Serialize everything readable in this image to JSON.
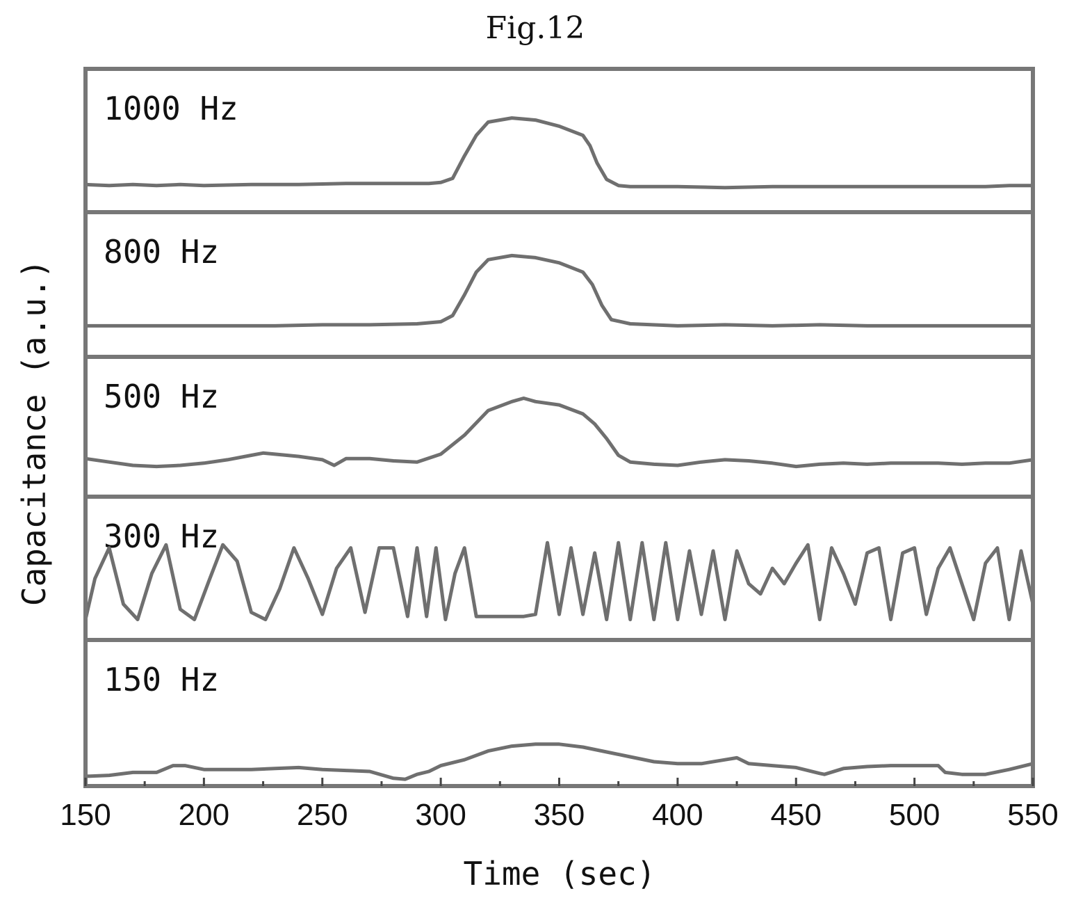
{
  "figure": {
    "title": "Fig.12"
  },
  "chart_data": {
    "type": "line",
    "xlabel": "Time (sec)",
    "ylabel": "Capacitance (a.u.)",
    "xlim": [
      150,
      550
    ],
    "xticks": [
      150,
      200,
      250,
      300,
      350,
      400,
      450,
      500,
      550
    ],
    "minor_tick_step": 25,
    "grid": false,
    "panels": [
      {
        "label": "1000 Hz",
        "ylim": [
          -0.2,
          1.2
        ],
        "x": [
          150,
          160,
          170,
          180,
          190,
          200,
          220,
          240,
          260,
          280,
          295,
          300,
          305,
          310,
          315,
          320,
          330,
          340,
          350,
          360,
          363,
          366,
          370,
          375,
          380,
          390,
          400,
          420,
          440,
          460,
          480,
          500,
          520,
          530,
          540,
          550
        ],
        "y": [
          0.07,
          0.06,
          0.07,
          0.06,
          0.07,
          0.06,
          0.07,
          0.07,
          0.08,
          0.08,
          0.08,
          0.09,
          0.13,
          0.35,
          0.55,
          0.68,
          0.72,
          0.7,
          0.64,
          0.55,
          0.45,
          0.28,
          0.12,
          0.06,
          0.05,
          0.05,
          0.05,
          0.04,
          0.05,
          0.05,
          0.05,
          0.05,
          0.05,
          0.05,
          0.06,
          0.06
        ]
      },
      {
        "label": "800 Hz",
        "ylim": [
          -0.3,
          1.1
        ],
        "x": [
          150,
          170,
          190,
          210,
          230,
          250,
          270,
          290,
          300,
          305,
          310,
          315,
          320,
          330,
          340,
          350,
          360,
          364,
          368,
          372,
          380,
          400,
          420,
          440,
          460,
          480,
          500,
          520,
          540,
          550
        ],
        "y": [
          0.0,
          0.0,
          0.0,
          0.0,
          0.0,
          0.01,
          0.01,
          0.02,
          0.04,
          0.1,
          0.3,
          0.52,
          0.64,
          0.68,
          0.66,
          0.61,
          0.52,
          0.4,
          0.2,
          0.06,
          0.02,
          0.0,
          0.01,
          0.0,
          0.01,
          0.0,
          0.0,
          0.0,
          0.0,
          0.0
        ]
      },
      {
        "label": "500 Hz",
        "ylim": [
          -0.25,
          1.0
        ],
        "x": [
          150,
          160,
          170,
          180,
          190,
          200,
          210,
          220,
          225,
          230,
          240,
          250,
          255,
          260,
          270,
          280,
          290,
          300,
          310,
          320,
          330,
          335,
          340,
          350,
          360,
          365,
          370,
          375,
          380,
          390,
          400,
          410,
          420,
          430,
          440,
          450,
          460,
          470,
          480,
          490,
          500,
          510,
          520,
          530,
          540,
          550
        ],
        "y": [
          0.09,
          0.06,
          0.03,
          0.02,
          0.03,
          0.05,
          0.08,
          0.12,
          0.14,
          0.13,
          0.11,
          0.08,
          0.03,
          0.09,
          0.09,
          0.07,
          0.06,
          0.13,
          0.3,
          0.52,
          0.6,
          0.63,
          0.6,
          0.57,
          0.49,
          0.4,
          0.27,
          0.12,
          0.06,
          0.04,
          0.03,
          0.06,
          0.08,
          0.07,
          0.05,
          0.02,
          0.04,
          0.05,
          0.04,
          0.05,
          0.05,
          0.05,
          0.04,
          0.05,
          0.05,
          0.08
        ]
      },
      {
        "label": "300 Hz",
        "ylim": [
          -0.15,
          1.25
        ],
        "x": [
          150,
          154,
          160,
          166,
          172,
          178,
          184,
          190,
          196,
          202,
          208,
          214,
          220,
          226,
          232,
          238,
          244,
          250,
          256,
          262,
          268,
          274,
          280,
          286,
          290,
          294,
          298,
          302,
          306,
          310,
          315,
          320,
          325,
          330,
          335,
          340,
          345,
          350,
          355,
          360,
          365,
          370,
          375,
          380,
          385,
          390,
          395,
          400,
          405,
          410,
          415,
          420,
          425,
          430,
          435,
          440,
          445,
          450,
          455,
          460,
          465,
          470,
          475,
          480,
          485,
          490,
          495,
          500,
          505,
          510,
          515,
          520,
          525,
          530,
          535,
          540,
          545,
          550
        ],
        "y": [
          0.05,
          0.45,
          0.75,
          0.2,
          0.05,
          0.5,
          0.78,
          0.15,
          0.05,
          0.42,
          0.78,
          0.62,
          0.12,
          0.05,
          0.35,
          0.75,
          0.45,
          0.1,
          0.55,
          0.75,
          0.12,
          0.75,
          0.75,
          0.08,
          0.75,
          0.08,
          0.75,
          0.05,
          0.5,
          0.75,
          0.08,
          0.08,
          0.08,
          0.08,
          0.08,
          0.1,
          0.8,
          0.1,
          0.75,
          0.1,
          0.7,
          0.05,
          0.8,
          0.05,
          0.8,
          0.05,
          0.8,
          0.05,
          0.72,
          0.1,
          0.72,
          0.05,
          0.72,
          0.4,
          0.3,
          0.55,
          0.4,
          0.6,
          0.78,
          0.05,
          0.75,
          0.5,
          0.2,
          0.7,
          0.75,
          0.05,
          0.7,
          0.75,
          0.1,
          0.55,
          0.75,
          0.4,
          0.05,
          0.6,
          0.75,
          0.05,
          0.72,
          0.2
        ]
      },
      {
        "label": "150 Hz",
        "ylim": [
          -0.05,
          1.45
        ],
        "x": [
          150,
          160,
          170,
          180,
          187,
          192,
          200,
          210,
          220,
          230,
          240,
          250,
          260,
          270,
          280,
          285,
          290,
          295,
          300,
          310,
          320,
          330,
          340,
          350,
          360,
          370,
          380,
          390,
          400,
          410,
          420,
          425,
          430,
          440,
          450,
          460,
          462,
          470,
          480,
          490,
          500,
          510,
          513,
          520,
          530,
          540,
          550
        ],
        "y": [
          0.05,
          0.06,
          0.09,
          0.09,
          0.16,
          0.16,
          0.12,
          0.12,
          0.12,
          0.13,
          0.14,
          0.12,
          0.11,
          0.1,
          0.03,
          0.02,
          0.07,
          0.1,
          0.16,
          0.22,
          0.31,
          0.36,
          0.38,
          0.38,
          0.35,
          0.3,
          0.25,
          0.2,
          0.18,
          0.18,
          0.22,
          0.24,
          0.18,
          0.16,
          0.14,
          0.08,
          0.07,
          0.13,
          0.15,
          0.16,
          0.16,
          0.16,
          0.09,
          0.07,
          0.07,
          0.12,
          0.18
        ]
      }
    ]
  }
}
